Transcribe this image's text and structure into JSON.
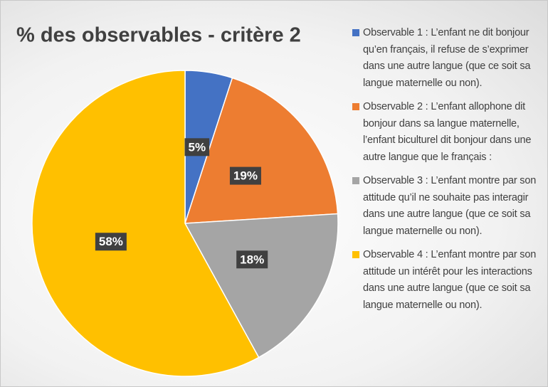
{
  "chart_data": {
    "type": "pie",
    "title": "% des observables - critère 2",
    "categories": [
      "Observable 1 : L’enfant ne dit bonjour qu’en français, il refuse de s’exprimer dans une autre langue (que ce soit sa langue maternelle ou non).",
      "Observable 2 : L’enfant allophone dit bonjour dans sa langue maternelle, l’enfant biculturel dit bonjour dans une autre langue que le français :",
      "Observable 3 : L’enfant montre par son attitude qu’il ne souhaite pas interagir dans une autre langue (que ce soit sa langue maternelle ou non).",
      "Observable 4 : L’enfant montre par son attitude un intérêt pour les interactions dans une autre langue (que ce soit sa langue maternelle ou non)."
    ],
    "values": [
      5,
      19,
      18,
      58
    ],
    "value_labels": [
      "5%",
      "19%",
      "18%",
      "58%"
    ],
    "colors": [
      "#4472c4",
      "#ed7d31",
      "#a5a5a5",
      "#ffc000"
    ],
    "legend": "right"
  }
}
